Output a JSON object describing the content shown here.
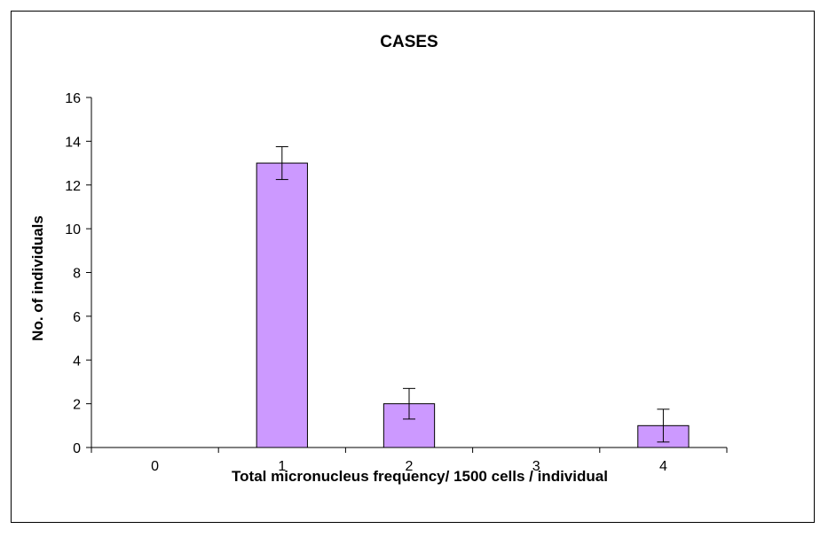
{
  "chart_data": {
    "type": "bar",
    "title": "CASES",
    "xlabel": "Total micronucleus frequency/ 1500 cells / individual",
    "ylabel": "No. of individuals",
    "categories": [
      "0",
      "1",
      "2",
      "3",
      "4"
    ],
    "values": [
      0,
      13,
      2,
      0,
      1
    ],
    "error": [
      0,
      0.75,
      0.7,
      0,
      0.75
    ],
    "ylim": [
      0,
      16
    ],
    "yticks": [
      0,
      2,
      4,
      6,
      8,
      10,
      12,
      14,
      16
    ],
    "grid": false,
    "legend": "none",
    "bar_color": "#cc99ff",
    "bar_edge_color": "#000000"
  }
}
